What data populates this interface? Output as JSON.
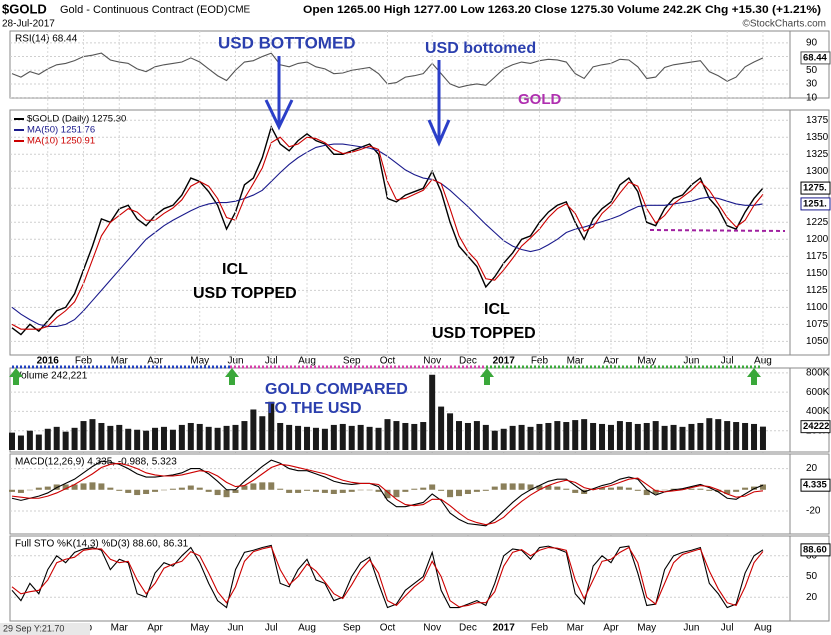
{
  "header": {
    "symbol": "$GOLD",
    "instrument": "Gold - Continuous Contract (EOD)",
    "exchange": "CME",
    "date": "28-Jul-2017",
    "quote": "Open 1265.00 High 1277.00 Low 1263.20 Close 1275.30 Volume 242.2K Chg +15.30 (+1.21%)",
    "credit": "©StockCharts.com",
    "cursor_readout": "29 Sep Y:21.70"
  },
  "annotations": [
    {
      "text": "USD BOTTOMED",
      "color": "#2b3fae"
    },
    {
      "text": "USD bottomed",
      "color": "#2b3fae"
    },
    {
      "text": "GOLD",
      "color": "#b02fb0"
    },
    {
      "text": "ICL",
      "color": "#000000"
    },
    {
      "text": "USD TOPPED",
      "color": "#000000"
    },
    {
      "text": "ICL",
      "color": "#000000"
    },
    {
      "text": "USD TOPPED",
      "color": "#000000"
    },
    {
      "text": "GOLD COMPARED",
      "color": "#2b3fae"
    },
    {
      "text": "TO THE USD",
      "color": "#2b3fae"
    }
  ],
  "chart_data": [
    {
      "type": "line",
      "title": "RSI(14) 68.44",
      "color": "#555555",
      "tag": "68.44",
      "values": [
        45,
        40,
        48,
        44,
        52,
        58,
        60,
        64,
        70,
        72,
        75,
        65,
        62,
        60,
        52,
        48,
        55,
        58,
        60,
        62,
        68,
        62,
        52,
        42,
        35,
        50,
        62,
        64,
        70,
        75,
        58,
        55,
        60,
        62,
        55,
        52,
        45,
        46,
        50,
        52,
        54,
        45,
        30,
        32,
        40,
        42,
        45,
        60,
        45,
        30,
        25,
        28,
        30,
        28,
        40,
        52,
        58,
        62,
        60,
        64,
        66,
        65,
        62,
        45,
        38,
        55,
        58,
        60,
        66,
        65,
        55,
        38,
        40,
        54,
        58,
        60,
        62,
        64,
        48,
        42,
        34,
        40,
        55,
        62,
        68
      ],
      "ylim": [
        0,
        100
      ],
      "yticks": [
        10,
        30,
        50,
        70,
        90
      ],
      "grid": true
    },
    {
      "type": "line",
      "categories": [
        null,
        null,
        null,
        null,
        "2016",
        null,
        null,
        null,
        "Feb",
        null,
        null,
        null,
        "Mar",
        null,
        null,
        null,
        "Apr",
        null,
        null,
        null,
        null,
        "May",
        null,
        null,
        null,
        "Jun",
        null,
        null,
        null,
        "Jul",
        null,
        null,
        null,
        "Aug",
        null,
        null,
        null,
        null,
        "Sep",
        null,
        null,
        null,
        "Oct",
        null,
        null,
        null,
        null,
        "Nov",
        null,
        null,
        null,
        "Dec",
        null,
        null,
        null,
        "2017",
        null,
        null,
        null,
        "Feb",
        null,
        null,
        null,
        "Mar",
        null,
        null,
        null,
        "Apr",
        null,
        null,
        null,
        "May",
        null,
        null,
        null,
        null,
        "Jun",
        null,
        null,
        null,
        "Jul",
        null,
        null,
        null,
        "Aug"
      ],
      "series": [
        {
          "name": "$GOLD (Daily) 1275.30",
          "color": "#000000",
          "tag": "1275.",
          "values": [
            1070,
            1060,
            1075,
            1065,
            1080,
            1095,
            1100,
            1120,
            1155,
            1190,
            1230,
            1225,
            1245,
            1250,
            1230,
            1220,
            1235,
            1245,
            1250,
            1265,
            1290,
            1285,
            1270,
            1250,
            1215,
            1240,
            1280,
            1290,
            1320,
            1365,
            1340,
            1330,
            1345,
            1355,
            1345,
            1340,
            1325,
            1325,
            1330,
            1335,
            1340,
            1325,
            1260,
            1255,
            1265,
            1270,
            1275,
            1300,
            1270,
            1225,
            1190,
            1175,
            1160,
            1130,
            1145,
            1165,
            1180,
            1200,
            1205,
            1225,
            1240,
            1250,
            1255,
            1225,
            1200,
            1230,
            1245,
            1255,
            1280,
            1290,
            1270,
            1225,
            1220,
            1245,
            1260,
            1265,
            1280,
            1290,
            1260,
            1245,
            1220,
            1215,
            1240,
            1260,
            1275.3
          ]
        },
        {
          "name": "MA(50) 1251.76",
          "color": "#1a1a8c",
          "tag": "1251.",
          "values": [
            1100,
            1090,
            1082,
            1075,
            1072,
            1072,
            1075,
            1082,
            1095,
            1110,
            1125,
            1140,
            1155,
            1170,
            1185,
            1200,
            1210,
            1220,
            1228,
            1235,
            1242,
            1248,
            1252,
            1254,
            1254,
            1256,
            1260,
            1265,
            1272,
            1285,
            1298,
            1310,
            1320,
            1328,
            1335,
            1338,
            1340,
            1340,
            1338,
            1336,
            1334,
            1330,
            1322,
            1312,
            1302,
            1295,
            1290,
            1288,
            1282,
            1272,
            1260,
            1248,
            1235,
            1222,
            1210,
            1198,
            1190,
            1185,
            1182,
            1185,
            1192,
            1200,
            1210,
            1215,
            1218,
            1222,
            1226,
            1230,
            1235,
            1242,
            1248,
            1250,
            1250,
            1250,
            1252,
            1254,
            1256,
            1260,
            1262,
            1260,
            1256,
            1252,
            1250,
            1250,
            1252
          ]
        },
        {
          "name": "MA(10) 1250.91",
          "color": "#cc0000",
          "values": [
            1075,
            1068,
            1068,
            1068,
            1072,
            1085,
            1095,
            1108,
            1135,
            1170,
            1205,
            1225,
            1235,
            1245,
            1240,
            1228,
            1228,
            1238,
            1246,
            1258,
            1278,
            1285,
            1278,
            1260,
            1232,
            1228,
            1260,
            1282,
            1305,
            1342,
            1350,
            1336,
            1340,
            1350,
            1348,
            1342,
            1332,
            1326,
            1328,
            1332,
            1337,
            1332,
            1285,
            1258,
            1260,
            1266,
            1272,
            1288,
            1282,
            1245,
            1205,
            1182,
            1168,
            1142,
            1140,
            1155,
            1172,
            1190,
            1202,
            1215,
            1232,
            1245,
            1252,
            1238,
            1212,
            1218,
            1238,
            1250,
            1268,
            1284,
            1278,
            1245,
            1224,
            1235,
            1252,
            1262,
            1272,
            1285,
            1272,
            1252,
            1232,
            1218,
            1228,
            1250,
            1266
          ]
        }
      ],
      "ylim": [
        1030,
        1390
      ],
      "yticks": [
        1050,
        1075,
        1100,
        1125,
        1150,
        1175,
        1200,
        1225,
        1250,
        1275,
        1300,
        1325,
        1350,
        1375
      ],
      "grid": true
    },
    {
      "type": "bar",
      "title": "Volume 242,221",
      "color": "#1a1a1a",
      "tag": "24222",
      "values": [
        180000,
        150000,
        200000,
        160000,
        220000,
        240000,
        190000,
        230000,
        300000,
        320000,
        280000,
        250000,
        260000,
        220000,
        210000,
        200000,
        230000,
        240000,
        210000,
        260000,
        280000,
        270000,
        240000,
        230000,
        250000,
        260000,
        300000,
        420000,
        350000,
        500000,
        280000,
        260000,
        250000,
        240000,
        230000,
        220000,
        260000,
        270000,
        250000,
        260000,
        240000,
        230000,
        320000,
        300000,
        280000,
        270000,
        290000,
        780000,
        450000,
        380000,
        300000,
        280000,
        300000,
        260000,
        200000,
        220000,
        250000,
        260000,
        240000,
        270000,
        280000,
        300000,
        290000,
        310000,
        320000,
        280000,
        270000,
        260000,
        300000,
        290000,
        270000,
        280000,
        300000,
        250000,
        260000,
        240000,
        270000,
        280000,
        330000,
        320000,
        300000,
        290000,
        280000,
        270000,
        242221
      ],
      "ylim": [
        0,
        850000
      ],
      "yticks": [
        {
          "value": 200000,
          "label": "200K"
        },
        {
          "value": 400000,
          "label": "400K"
        },
        {
          "value": 600000,
          "label": "600K"
        },
        {
          "value": 800000,
          "label": "800K"
        }
      ],
      "grid": true
    },
    {
      "type": "line",
      "title": "MACD(12,26,9) 4.335, -0.988, 5.323",
      "series": [
        {
          "color": "#8a7f5a",
          "style": "bar",
          "values": [
            -2,
            -3,
            0,
            2,
            3,
            5,
            5,
            5,
            6,
            7,
            6,
            2,
            -1,
            -3,
            -5,
            -4,
            -2,
            0,
            1,
            2,
            4,
            2,
            -2,
            -5,
            -7,
            -3,
            4,
            6,
            7,
            7,
            1,
            -3,
            -3,
            -1,
            -2,
            -3,
            -4,
            -3,
            -2,
            0,
            0,
            -2,
            -8,
            -7,
            -2,
            1,
            2,
            5,
            -1,
            -7,
            -6,
            -4,
            -2,
            -1,
            3,
            6,
            6,
            6,
            5,
            4,
            4,
            3,
            1,
            -3,
            -4,
            1,
            2,
            2,
            3,
            2,
            -1,
            -5,
            -4,
            0,
            1,
            1,
            1,
            1,
            -1,
            -2,
            -4,
            -2,
            2,
            3,
            5
          ]
        },
        {
          "color": "#000000",
          "tag": "4.335",
          "values": [
            -8,
            -10,
            -8,
            -6,
            -3,
            2,
            6,
            10,
            16,
            22,
            27,
            26,
            24,
            20,
            15,
            12,
            12,
            13,
            14,
            16,
            20,
            20,
            15,
            8,
            0,
            0,
            8,
            15,
            22,
            28,
            25,
            20,
            18,
            18,
            15,
            12,
            8,
            6,
            5,
            6,
            6,
            3,
            -10,
            -16,
            -16,
            -14,
            -12,
            -4,
            -10,
            -22,
            -28,
            -32,
            -33,
            -34,
            -28,
            -20,
            -12,
            -5,
            0,
            4,
            8,
            10,
            10,
            4,
            -2,
            1,
            4,
            6,
            10,
            12,
            10,
            0,
            -5,
            -2,
            0,
            1,
            3,
            5,
            2,
            -2,
            -8,
            -9,
            -4,
            1,
            4.335
          ]
        },
        {
          "color": "#cc0000",
          "values": [
            -6,
            -7,
            -8,
            -8,
            -6,
            -3,
            1,
            5,
            10,
            15,
            21,
            24,
            25,
            23,
            20,
            16,
            14,
            13,
            13,
            14,
            16,
            18,
            17,
            13,
            7,
            3,
            4,
            9,
            15,
            21,
            24,
            23,
            21,
            19,
            17,
            15,
            12,
            9,
            7,
            6,
            6,
            5,
            -2,
            -9,
            -14,
            -15,
            -14,
            -9,
            -9,
            -15,
            -22,
            -28,
            -31,
            -33,
            -31,
            -26,
            -18,
            -11,
            -5,
            0,
            4,
            7,
            9,
            7,
            2,
            0,
            2,
            4,
            7,
            10,
            11,
            5,
            -1,
            -2,
            -1,
            0,
            2,
            4,
            3,
            0,
            -4,
            -7,
            -6,
            -2,
            -0.988
          ]
        }
      ],
      "ylim": [
        -38,
        30
      ],
      "yticks": [
        -20,
        20
      ],
      "grid": true
    },
    {
      "type": "line",
      "title": "Full STO %K(14,3) %D(3) 88.60, 86.31",
      "categories": [
        null,
        null,
        null,
        null,
        "2016",
        null,
        null,
        null,
        "Feb",
        null,
        null,
        null,
        "Mar",
        null,
        null,
        null,
        "Apr",
        null,
        null,
        null,
        null,
        "May",
        null,
        null,
        null,
        "Jun",
        null,
        null,
        null,
        "Jul",
        null,
        null,
        null,
        "Aug",
        null,
        null,
        null,
        null,
        "Sep",
        null,
        null,
        null,
        "Oct",
        null,
        null,
        null,
        null,
        "Nov",
        null,
        null,
        null,
        "Dec",
        null,
        null,
        null,
        "2017",
        null,
        null,
        null,
        "Feb",
        null,
        null,
        null,
        "Mar",
        null,
        null,
        null,
        "Apr",
        null,
        null,
        null,
        "May",
        null,
        null,
        null,
        null,
        "Jun",
        null,
        null,
        null,
        "Jul",
        null,
        null,
        null,
        "Aug"
      ],
      "series": [
        {
          "color": "#000000",
          "tag": "88.60",
          "values": [
            30,
            15,
            40,
            25,
            60,
            80,
            70,
            85,
            90,
            92,
            88,
            60,
            75,
            70,
            25,
            20,
            55,
            70,
            65,
            80,
            92,
            70,
            40,
            15,
            5,
            60,
            85,
            88,
            92,
            95,
            40,
            35,
            60,
            75,
            45,
            40,
            15,
            20,
            50,
            70,
            78,
            40,
            5,
            10,
            30,
            40,
            50,
            85,
            30,
            5,
            5,
            10,
            15,
            8,
            40,
            80,
            90,
            88,
            75,
            92,
            94,
            90,
            85,
            25,
            10,
            65,
            80,
            70,
            92,
            94,
            55,
            8,
            10,
            60,
            80,
            85,
            88,
            92,
            40,
            25,
            5,
            10,
            55,
            80,
            88.6
          ]
        },
        {
          "color": "#cc0000",
          "values": [
            35,
            25,
            28,
            30,
            45,
            70,
            75,
            78,
            88,
            90,
            90,
            75,
            70,
            72,
            45,
            25,
            40,
            62,
            68,
            72,
            86,
            80,
            55,
            28,
            12,
            35,
            72,
            86,
            90,
            93,
            60,
            38,
            50,
            68,
            58,
            42,
            25,
            18,
            38,
            60,
            74,
            55,
            15,
            8,
            22,
            35,
            45,
            72,
            50,
            15,
            6,
            8,
            12,
            12,
            28,
            65,
            85,
            89,
            80,
            88,
            92,
            91,
            88,
            45,
            18,
            45,
            72,
            75,
            85,
            92,
            70,
            20,
            10,
            40,
            70,
            82,
            86,
            90,
            58,
            32,
            12,
            8,
            35,
            70,
            86.31
          ]
        }
      ],
      "ylim": [
        0,
        100
      ],
      "yticks": [
        20,
        50,
        80
      ],
      "grid": true
    }
  ]
}
